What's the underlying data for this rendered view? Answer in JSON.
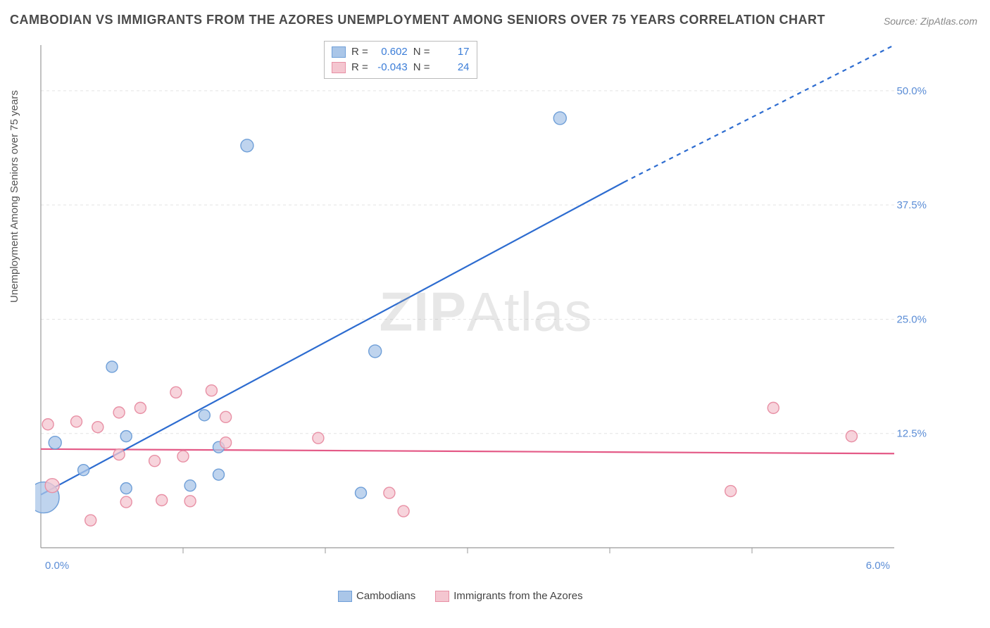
{
  "title": "CAMBODIAN VS IMMIGRANTS FROM THE AZORES UNEMPLOYMENT AMONG SENIORS OVER 75 YEARS CORRELATION CHART",
  "source": "Source: ZipAtlas.com",
  "y_axis_label": "Unemployment Among Seniors over 75 years",
  "watermark_a": "ZIP",
  "watermark_b": "Atlas",
  "chart": {
    "type": "scatter-with-trendlines",
    "background_color": "#ffffff",
    "grid_color": "#e4e4e4",
    "axis_color": "#999999",
    "tick_label_color": "#5b8dd6",
    "xlim": [
      0.0,
      6.0
    ],
    "ylim": [
      0.0,
      55.0
    ],
    "x_ticks": [
      0.0,
      6.0
    ],
    "x_tick_labels": [
      "0.0%",
      "6.0%"
    ],
    "x_minor_ticks": [
      1.0,
      2.0,
      3.0,
      4.0,
      5.0
    ],
    "y_ticks": [
      12.5,
      25.0,
      37.5,
      50.0
    ],
    "y_tick_labels": [
      "12.5%",
      "25.0%",
      "37.5%",
      "50.0%"
    ],
    "tick_fontsize": 15,
    "label_fontsize": 15,
    "title_fontsize": 18,
    "series": [
      {
        "name": "Cambodians",
        "color_fill": "#aac6e8",
        "color_stroke": "#6f9fd8",
        "color_line": "#2d6cd0",
        "r_stat": "0.602",
        "n_stat": "17",
        "trend": {
          "x1": 0.0,
          "y1": 5.8,
          "x2": 4.1,
          "y2": 40.0,
          "dash_x2": 6.0,
          "dash_y2": 56.0
        },
        "points": [
          {
            "x": 0.02,
            "y": 5.5,
            "r": 22
          },
          {
            "x": 0.1,
            "y": 11.5,
            "r": 9
          },
          {
            "x": 0.3,
            "y": 8.5,
            "r": 8
          },
          {
            "x": 0.5,
            "y": 19.8,
            "r": 8
          },
          {
            "x": 0.6,
            "y": 12.2,
            "r": 8
          },
          {
            "x": 0.6,
            "y": 6.5,
            "r": 8
          },
          {
            "x": 1.05,
            "y": 6.8,
            "r": 8
          },
          {
            "x": 1.15,
            "y": 14.5,
            "r": 8
          },
          {
            "x": 1.25,
            "y": 8.0,
            "r": 8
          },
          {
            "x": 1.25,
            "y": 11.0,
            "r": 8
          },
          {
            "x": 1.45,
            "y": 44.0,
            "r": 9
          },
          {
            "x": 2.25,
            "y": 6.0,
            "r": 8
          },
          {
            "x": 2.35,
            "y": 21.5,
            "r": 9
          },
          {
            "x": 3.65,
            "y": 47.0,
            "r": 9
          }
        ]
      },
      {
        "name": "Immigrants from the Azores",
        "color_fill": "#f4c6d0",
        "color_stroke": "#e890a5",
        "color_line": "#e45a87",
        "r_stat": "-0.043",
        "n_stat": "24",
        "trend": {
          "x1": 0.0,
          "y1": 10.8,
          "x2": 6.0,
          "y2": 10.3
        },
        "points": [
          {
            "x": 0.05,
            "y": 13.5,
            "r": 8
          },
          {
            "x": 0.08,
            "y": 6.8,
            "r": 10
          },
          {
            "x": 0.25,
            "y": 13.8,
            "r": 8
          },
          {
            "x": 0.35,
            "y": 3.0,
            "r": 8
          },
          {
            "x": 0.4,
            "y": 13.2,
            "r": 8
          },
          {
            "x": 0.55,
            "y": 14.8,
            "r": 8
          },
          {
            "x": 0.55,
            "y": 10.2,
            "r": 8
          },
          {
            "x": 0.6,
            "y": 5.0,
            "r": 8
          },
          {
            "x": 0.7,
            "y": 15.3,
            "r": 8
          },
          {
            "x": 0.8,
            "y": 9.5,
            "r": 8
          },
          {
            "x": 0.85,
            "y": 5.2,
            "r": 8
          },
          {
            "x": 0.95,
            "y": 17.0,
            "r": 8
          },
          {
            "x": 1.0,
            "y": 10.0,
            "r": 8
          },
          {
            "x": 1.05,
            "y": 5.1,
            "r": 8
          },
          {
            "x": 1.2,
            "y": 17.2,
            "r": 8
          },
          {
            "x": 1.3,
            "y": 14.3,
            "r": 8
          },
          {
            "x": 1.3,
            "y": 11.5,
            "r": 8
          },
          {
            "x": 1.95,
            "y": 12.0,
            "r": 8
          },
          {
            "x": 2.45,
            "y": 6.0,
            "r": 8
          },
          {
            "x": 2.55,
            "y": 4.0,
            "r": 8
          },
          {
            "x": 4.85,
            "y": 6.2,
            "r": 8
          },
          {
            "x": 5.15,
            "y": 15.3,
            "r": 8
          },
          {
            "x": 5.7,
            "y": 12.2,
            "r": 8
          }
        ]
      }
    ]
  },
  "legend": {
    "series1_label": "Cambodians",
    "series2_label": "Immigrants from the Azores"
  },
  "stats_labels": {
    "r": "R =",
    "n": "N ="
  }
}
